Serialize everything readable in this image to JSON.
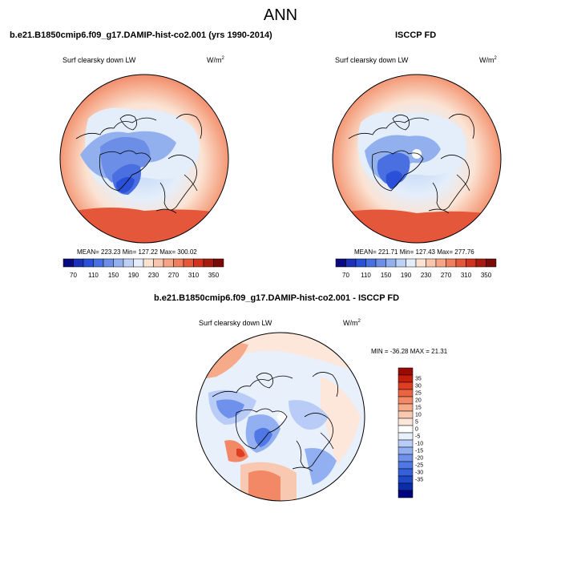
{
  "title": "ANN",
  "panels": [
    {
      "id": "model",
      "case_title": "b.e21.B1850cmip6.f09_g17.DAMIP-hist-co2.001 (yrs 1990-2014)",
      "variable": "Surf clearsky down LW",
      "units_base": "W/m",
      "units_exp": "2",
      "stats": {
        "mean": "223.23",
        "min": "127.22",
        "max": "300.02"
      }
    },
    {
      "id": "obs",
      "case_title": "ISCCP FD",
      "variable": "Surf clearsky down LW",
      "units_base": "W/m",
      "units_exp": "2",
      "stats": {
        "mean": "221.71",
        "min": "127.43",
        "max": "277.76"
      }
    }
  ],
  "diff_panel": {
    "case_title": "b.e21.B1850cmip6.f09_g17.DAMIP-hist-co2.001 - ISCCP FD",
    "variable": "Surf clearsky down LW",
    "units_base": "W/m",
    "units_exp": "2",
    "min_max": "MIN = -36.28 MAX =  21.31"
  },
  "stats_labels": {
    "mean": "MEAN=",
    "min": "Min=",
    "max": "Max="
  },
  "abs_colorbar": {
    "colors": [
      "#0a0a80",
      "#1c30b8",
      "#2b50d8",
      "#4a6fe0",
      "#6c8ee6",
      "#93b0ee",
      "#bcd1f5",
      "#e4eefb",
      "#fbe3d3",
      "#f9c6ad",
      "#f5a585",
      "#ee7e5c",
      "#e4573a",
      "#cf3320",
      "#a61a10",
      "#7a0a05"
    ],
    "labels": [
      "70",
      "110",
      "150",
      "190",
      "230",
      "270",
      "310",
      "350"
    ]
  },
  "diff_colorbar": {
    "colors": [
      "#000080",
      "#0a2ca8",
      "#1e48c8",
      "#3560dc",
      "#5078e4",
      "#6e92ec",
      "#92aff2",
      "#b8ccf7",
      "#e8f0fc",
      "#ffffff",
      "#fde6da",
      "#f9c8b0",
      "#f6aa8a",
      "#f28866",
      "#ea6442",
      "#df3e22",
      "#c51d0c",
      "#9a0a02"
    ],
    "labels": [
      "35",
      "30",
      "25",
      "20",
      "15",
      "10",
      "5",
      "0",
      "-5",
      "-10",
      "-15",
      "-20",
      "-25",
      "-30",
      "-35"
    ]
  },
  "colors": {
    "text": "#000000",
    "coast": "#000000",
    "background": "#ffffff"
  }
}
